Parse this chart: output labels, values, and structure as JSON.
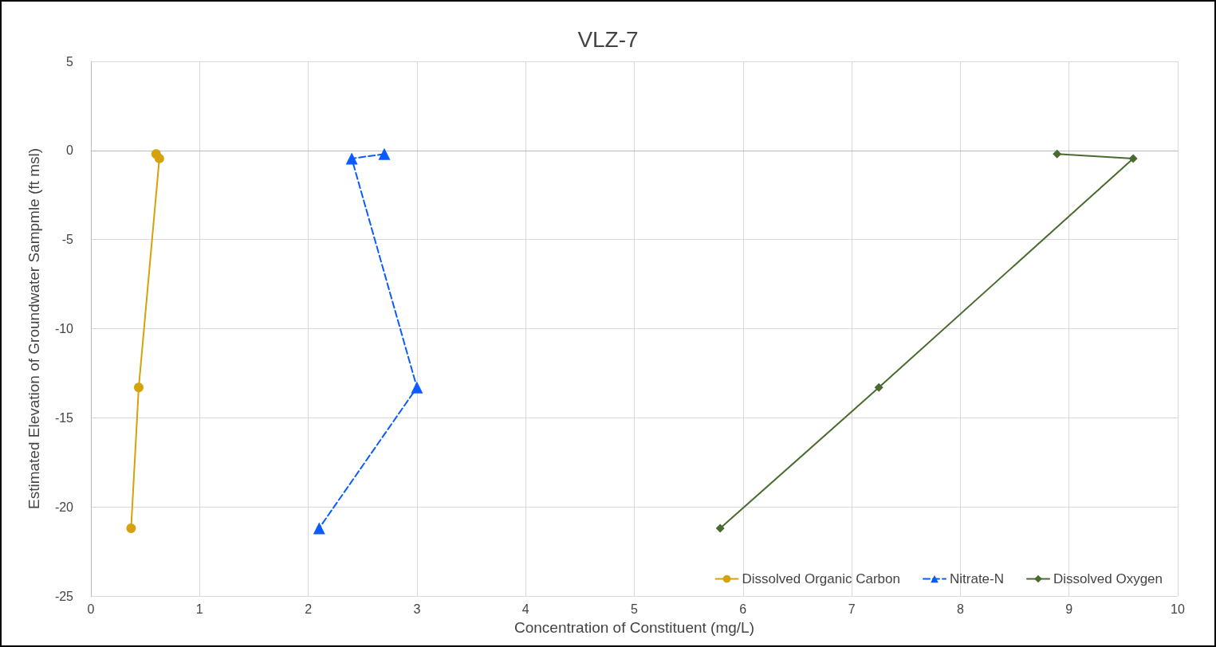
{
  "chart_data": {
    "type": "line",
    "title": "VLZ-7",
    "xlabel": "Concentration of Constituent (mg/L)",
    "ylabel": "Estimated Elevation of Groundwater Sampmle (ft msl)",
    "xlim": [
      0,
      10
    ],
    "xticks": [
      0,
      1,
      2,
      3,
      4,
      5,
      6,
      7,
      8,
      9,
      10
    ],
    "ylim": [
      -25,
      5
    ],
    "yticks": [
      -25,
      -20,
      -15,
      -10,
      -5,
      0,
      5
    ],
    "grid": true,
    "legend": "bottom right",
    "series": [
      {
        "name": "Dissolved Organic Carbon",
        "color": "#d4a20a",
        "marker": "circle",
        "line_style": "solid",
        "x": [
          0.6,
          0.63,
          0.44,
          0.37
        ],
        "values": [
          -0.2,
          -0.45,
          -13.3,
          -21.2
        ]
      },
      {
        "name": "Nitrate-N",
        "color": "#0a5cff",
        "marker": "triangle",
        "line_style": "dashed",
        "x": [
          2.7,
          2.4,
          3.0,
          2.1
        ],
        "values": [
          -0.2,
          -0.45,
          -13.3,
          -21.2
        ]
      },
      {
        "name": "Dissolved Oxygen",
        "color": "#4a6b2f",
        "marker": "diamond",
        "line_style": "solid",
        "x": [
          8.89,
          9.59,
          7.25,
          5.79
        ],
        "values": [
          -0.2,
          -0.45,
          -13.3,
          -21.2
        ]
      }
    ]
  }
}
